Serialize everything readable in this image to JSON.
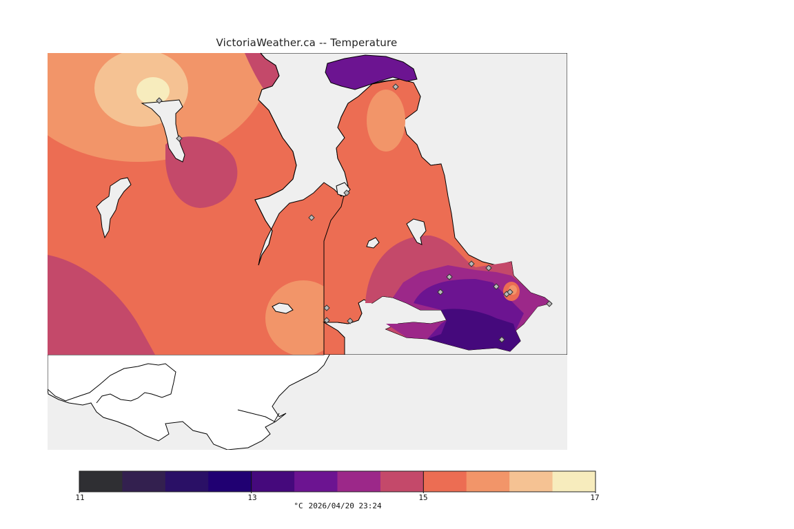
{
  "header": {
    "title": "VictoriaWeather.ca -- Temperature"
  },
  "legend": {
    "min": 11,
    "max": 17,
    "tick_labels": [
      "11",
      "13",
      "15",
      "17"
    ],
    "unit": "°C",
    "timestamp": "2026/04/20 23:24",
    "colors": [
      "#2f2f33",
      "#33204f",
      "#2a1066",
      "#200072",
      "#45097c",
      "#6c1491",
      "#9c2889",
      "#c4496a",
      "#ec6d53",
      "#f29569",
      "#f5c293",
      "#f7ecbd"
    ]
  },
  "map": {
    "background": "#efefef",
    "land_color": "#ffffff",
    "station_count": 17,
    "bands": [
      {
        "temp_range": "16.5-17",
        "color": "#f7ecbd"
      },
      {
        "temp_range": "16-16.5",
        "color": "#f5c293"
      },
      {
        "temp_range": "15.5-16",
        "color": "#f29569"
      },
      {
        "temp_range": "15-15.5",
        "color": "#ec6d53"
      },
      {
        "temp_range": "14.5-15",
        "color": "#c4496a"
      },
      {
        "temp_range": "14-14.5",
        "color": "#9c2889"
      },
      {
        "temp_range": "13.5-14",
        "color": "#6c1491"
      },
      {
        "temp_range": "13-13.5",
        "color": "#45097c"
      }
    ]
  }
}
